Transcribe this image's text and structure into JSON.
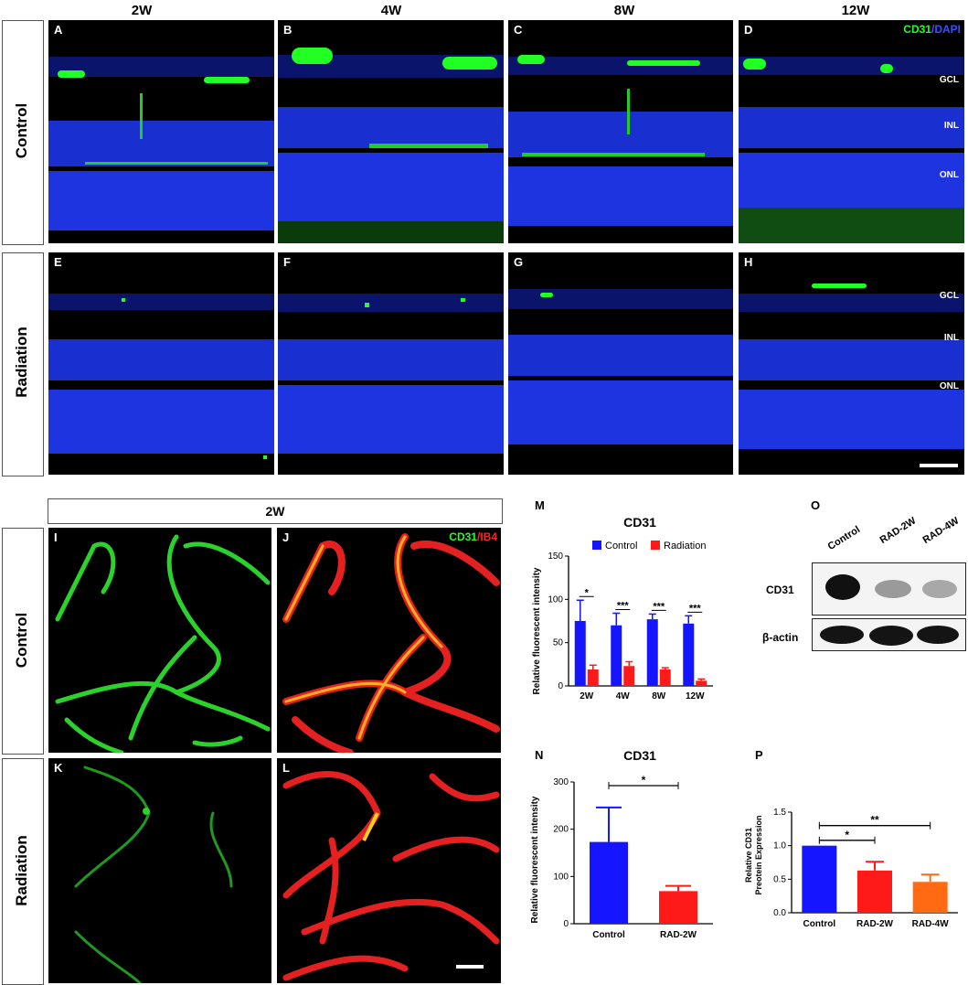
{
  "panels_top": {
    "columns": [
      "2W",
      "4W",
      "8W",
      "12W"
    ],
    "rows": [
      "Control",
      "Radiation"
    ],
    "labels": [
      "A",
      "B",
      "C",
      "D",
      "E",
      "F",
      "G",
      "H"
    ],
    "legend_cd31": "CD31",
    "legend_sep": "/",
    "legend_dapi": "DAPI",
    "layers": [
      "GCL",
      "INL",
      "ONL"
    ]
  },
  "panels_bottom": {
    "header": "2W",
    "rows": [
      "Control",
      "Radiation"
    ],
    "labels": [
      "I",
      "J",
      "K",
      "L"
    ],
    "legend_cd31": "CD31",
    "legend_sep": "/",
    "legend_ib4": "IB4"
  },
  "colors": {
    "blue": "#1515ff",
    "red": "#ff1a1a",
    "orange": "#ff6a13",
    "green": "#22ff22",
    "dapi": "#1a2fd0"
  },
  "chart_m": {
    "label": "M",
    "chart_data": {
      "type": "bar",
      "title": "CD31",
      "ylabel": "Relative fluorescent intensity",
      "categories": [
        "2W",
        "4W",
        "8W",
        "12W"
      ],
      "series": [
        {
          "name": "Control",
          "values": [
            75,
            70,
            77,
            72
          ],
          "errors": [
            24,
            14,
            6,
            9
          ],
          "color": "#1515ff"
        },
        {
          "name": "Radiation",
          "values": [
            19,
            23,
            19,
            6
          ],
          "errors": [
            5,
            5,
            2,
            2
          ],
          "color": "#ff1a1a"
        }
      ],
      "ylim": [
        0,
        150
      ],
      "yticks": [
        "0",
        "50",
        "100",
        "150"
      ],
      "significance": [
        "*",
        "***",
        "***",
        "***"
      ],
      "legend_position": "top"
    }
  },
  "chart_n": {
    "label": "N",
    "chart_data": {
      "type": "bar",
      "title": "CD31",
      "ylabel": "Relative fluorescent intensity",
      "categories": [
        "Control",
        "RAD-2W"
      ],
      "values": [
        173,
        69
      ],
      "errors": [
        73,
        11
      ],
      "colors": [
        "#1515ff",
        "#ff1a1a"
      ],
      "ylim": [
        0,
        300
      ],
      "yticks": [
        "0",
        "100",
        "200",
        "300"
      ],
      "significance": [
        "*"
      ]
    }
  },
  "chart_p": {
    "label": "P",
    "chart_data": {
      "type": "bar",
      "title": "",
      "ylabel_line1": "Relative CD31",
      "ylabel_line2": "Preotein Expression",
      "categories": [
        "Control",
        "RAD-2W",
        "RAD-4W"
      ],
      "values": [
        1.0,
        0.63,
        0.46
      ],
      "errors": [
        0,
        0.13,
        0.11
      ],
      "colors": [
        "#1515ff",
        "#ff1a1a",
        "#ff6a13"
      ],
      "ylim": [
        0,
        1.5
      ],
      "yticks": [
        "0.0",
        "0.5",
        "1.0",
        "1.5"
      ],
      "significance": [
        "*",
        "**"
      ]
    }
  },
  "blot_o": {
    "label": "O",
    "lanes": [
      "Control",
      "RAD-2W",
      "RAD-4W"
    ],
    "rows": [
      "CD31",
      "β-actin"
    ]
  }
}
